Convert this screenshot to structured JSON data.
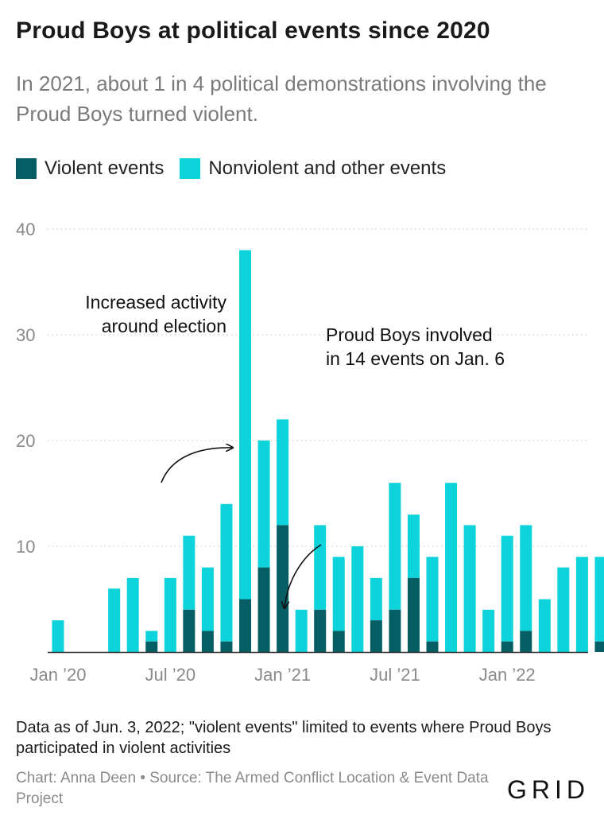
{
  "title": "Proud Boys at political events since 2020",
  "subtitle": "In 2021, about 1 in 4 political demonstrations involving the Proud Boys turned violent.",
  "legend": {
    "violent": "Violent events",
    "nonviolent": "Nonviolent and other events"
  },
  "colors": {
    "violent": "#055e63",
    "nonviolent": "#0dd3db",
    "grid": "#cfcfcf",
    "axis_text": "#8a8a8a"
  },
  "chart_data": {
    "type": "bar",
    "stacked": true,
    "categories": [
      "Jan 2020",
      "Feb 2020",
      "Mar 2020",
      "Apr 2020",
      "May 2020",
      "Jun 2020",
      "Jul 2020",
      "Aug 2020",
      "Sep 2020",
      "Oct 2020",
      "Nov 2020",
      "Dec 2020",
      "Jan 2021",
      "Feb 2021",
      "Mar 2021",
      "Apr 2021",
      "May 2021",
      "Jun 2021",
      "Jul 2021",
      "Aug 2021",
      "Sep 2021",
      "Oct 2021",
      "Nov 2021",
      "Dec 2021",
      "Jan 2022",
      "Feb 2022",
      "Mar 2022",
      "Apr 2022",
      "May 2022",
      "Jun 2022"
    ],
    "series": [
      {
        "name": "Violent events",
        "values": [
          0,
          0,
          0,
          0,
          0,
          1,
          0,
          4,
          2,
          1,
          5,
          8,
          12,
          0,
          4,
          2,
          0,
          3,
          4,
          7,
          1,
          0,
          0,
          0,
          1,
          2,
          0,
          0,
          0,
          1
        ]
      },
      {
        "name": "Nonviolent and other events",
        "values": [
          3,
          0,
          0,
          6,
          7,
          1,
          7,
          7,
          6,
          13,
          33,
          12,
          10,
          4,
          8,
          7,
          10,
          4,
          12,
          6,
          8,
          16,
          12,
          4,
          10,
          10,
          5,
          8,
          9,
          8
        ]
      }
    ],
    "x_tick_labels": [
      {
        "index": 0,
        "label": "Jan ’20"
      },
      {
        "index": 6,
        "label": "Jul ’20"
      },
      {
        "index": 12,
        "label": "Jan ’21"
      },
      {
        "index": 18,
        "label": "Jul ’21"
      },
      {
        "index": 24,
        "label": "Jan ’22"
      }
    ],
    "y_ticks": [
      "10",
      "20",
      "30",
      "40"
    ],
    "ylim": [
      0,
      40
    ],
    "grid": true,
    "legend_position": "top-left",
    "annotations": [
      {
        "lines": [
          "Increased activity",
          "around election"
        ],
        "target_index": 10
      },
      {
        "lines": [
          "Proud Boys involved",
          "in 14 events on Jan. 6"
        ],
        "target_index": 12
      }
    ]
  },
  "footnote": "Data as of Jun. 3, 2022; \"violent events\" limited to events where Proud Boys participated in violent activities",
  "credit": "Chart: Anna Deen • Source: The Armed Conflict Location & Event Data Project",
  "logo_text": "GRID"
}
